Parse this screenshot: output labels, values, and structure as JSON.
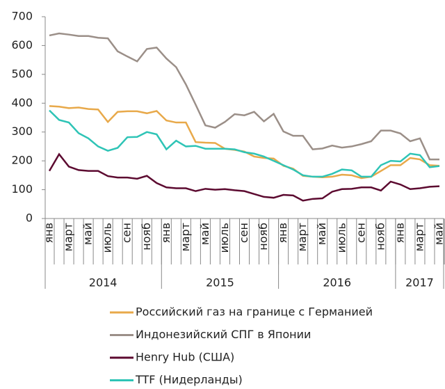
{
  "chart_data": {
    "type": "line",
    "categories": [
      "янв",
      null,
      "март",
      null,
      "май",
      null,
      "июль",
      null,
      "сен",
      null,
      "нояб",
      null,
      "янв",
      null,
      "март",
      null,
      "май",
      null,
      "июль",
      null,
      "сен",
      null,
      "нояб",
      null,
      "янв",
      null,
      "март",
      null,
      "май",
      null,
      "июль",
      null,
      "сен",
      null,
      "нояб",
      null,
      "янв",
      null,
      "март",
      null,
      "май"
    ],
    "x_groups": [
      {
        "label": "2014",
        "count": 12
      },
      {
        "label": "2015",
        "count": 12
      },
      {
        "label": "2016",
        "count": 12
      },
      {
        "label": "2017",
        "count": 5
      }
    ],
    "ylim": [
      0,
      700
    ],
    "yticks": [
      0,
      100,
      200,
      300,
      400,
      500,
      600,
      700
    ],
    "grid": false,
    "series": [
      {
        "name": "Российский газ на границе с Германией",
        "color": "#e8a94a",
        "values": [
          390,
          388,
          383,
          385,
          380,
          378,
          335,
          370,
          372,
          372,
          365,
          373,
          340,
          333,
          333,
          265,
          263,
          262,
          242,
          238,
          232,
          215,
          210,
          208,
          183,
          173,
          148,
          145,
          143,
          145,
          152,
          150,
          140,
          145,
          165,
          185,
          185,
          210,
          205,
          185,
          183
        ]
      },
      {
        "name": "Индонезийский СПГ в Японии",
        "color": "#9b8f88",
        "values": [
          635,
          642,
          638,
          633,
          633,
          627,
          625,
          580,
          562,
          545,
          588,
          593,
          555,
          525,
          465,
          395,
          323,
          315,
          335,
          362,
          358,
          370,
          337,
          363,
          302,
          287,
          287,
          240,
          243,
          253,
          246,
          250,
          258,
          268,
          305,
          305,
          295,
          268,
          278,
          205,
          205
        ]
      },
      {
        "name": "Henry Hub (США)",
        "color": "#5c0a30",
        "values": [
          165,
          223,
          180,
          168,
          165,
          165,
          147,
          142,
          142,
          138,
          148,
          123,
          108,
          105,
          105,
          95,
          103,
          100,
          102,
          98,
          95,
          85,
          75,
          72,
          82,
          80,
          62,
          68,
          70,
          93,
          102,
          103,
          108,
          108,
          97,
          128,
          118,
          102,
          105,
          110,
          112
        ]
      },
      {
        "name": "TTF (Нидерланды)",
        "color": "#2ec4b6",
        "values": [
          375,
          342,
          333,
          296,
          278,
          250,
          235,
          245,
          282,
          283,
          300,
          292,
          240,
          270,
          250,
          252,
          242,
          242,
          242,
          240,
          230,
          225,
          215,
          200,
          185,
          170,
          150,
          145,
          145,
          155,
          170,
          167,
          145,
          145,
          185,
          200,
          198,
          225,
          220,
          178,
          182
        ]
      }
    ]
  }
}
